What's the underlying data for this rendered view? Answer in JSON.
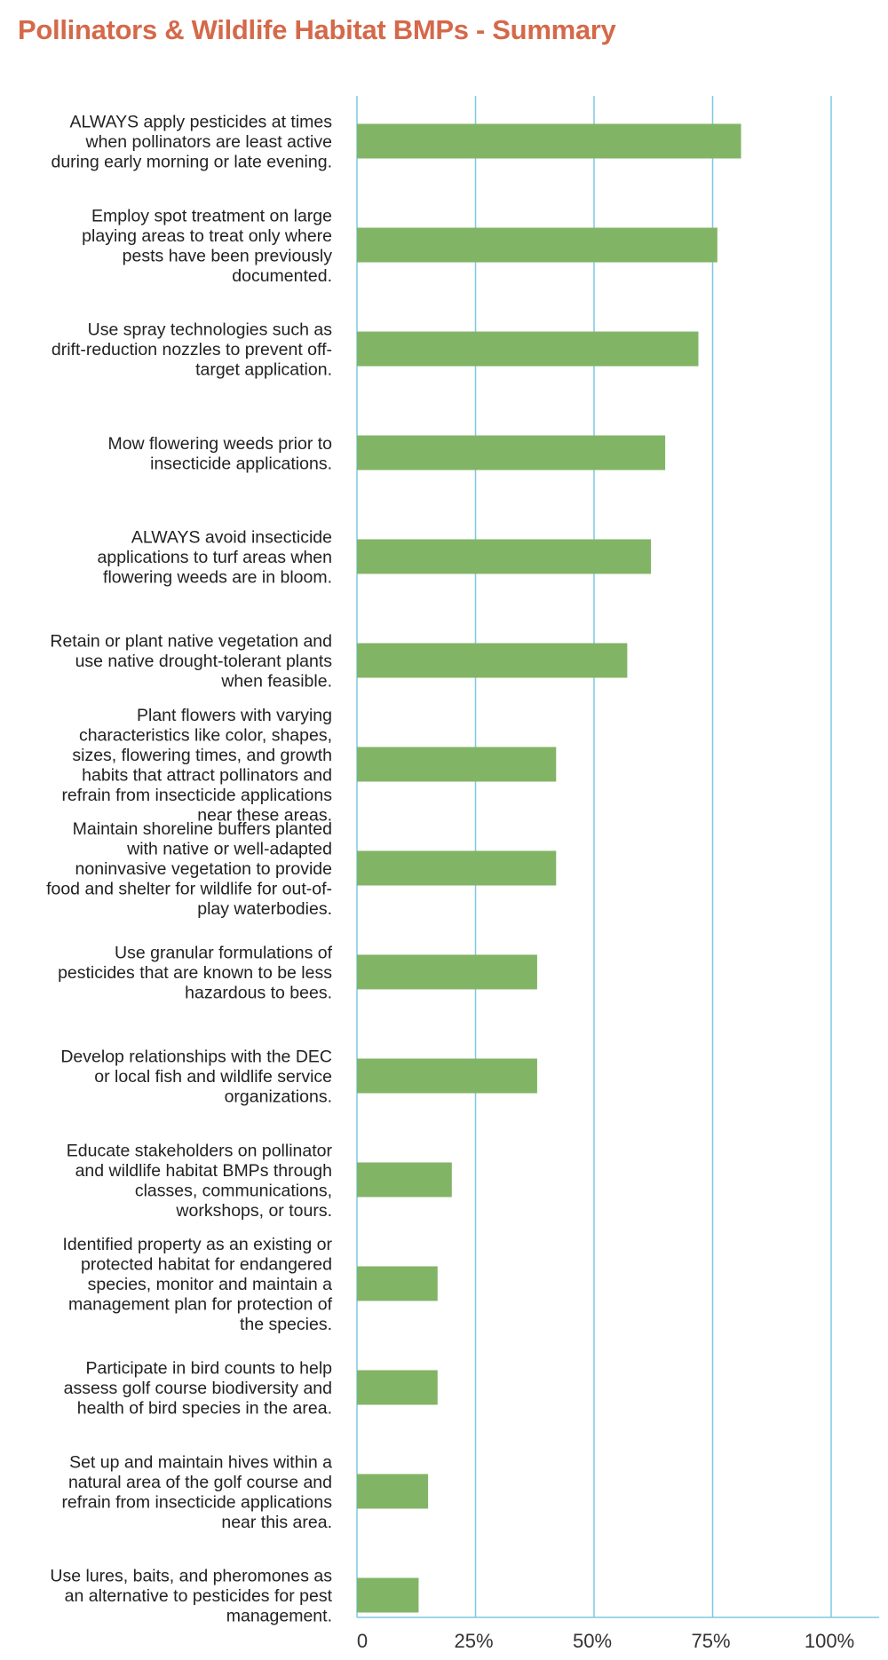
{
  "chart_data": {
    "type": "bar",
    "orientation": "horizontal",
    "title": "Pollinators & Wildlife Habitat BMPs - Summary",
    "xlabel": "",
    "ylabel": "",
    "categories": [
      [
        "ALWAYS apply pesticides at times",
        "when pollinators are least active",
        "during early morning or late evening."
      ],
      [
        "Employ spot treatment on large",
        "playing areas to treat only where",
        "pests have been previously",
        "documented."
      ],
      [
        "Use spray technologies such as",
        "drift-reduction nozzles to prevent off-",
        "target application."
      ],
      [
        "Mow flowering weeds prior to",
        "insecticide applications."
      ],
      [
        "ALWAYS avoid insecticide",
        "applications to turf areas when",
        "flowering weeds are in bloom."
      ],
      [
        "Retain or plant native vegetation and",
        "use native drought-tolerant plants",
        "when feasible."
      ],
      [
        "Plant flowers with varying",
        "characteristics like color, shapes,",
        "sizes, flowering times, and growth",
        "habits that attract pollinators and",
        "refrain from insecticide applications",
        "near these areas."
      ],
      [
        "Maintain shoreline buffers planted",
        "with native or well-adapted",
        "noninvasive vegetation to provide",
        "food and shelter for wildlife for out-of-",
        "play waterbodies."
      ],
      [
        "Use granular formulations of",
        "pesticides that are known to be less",
        "hazardous to bees."
      ],
      [
        "Develop relationships with the DEC",
        "or local fish and wildlife service",
        "organizations."
      ],
      [
        "Educate stakeholders on pollinator",
        "and wildlife habitat BMPs through",
        "classes, communications,",
        "workshops, or tours."
      ],
      [
        "Identified property as an existing or",
        "protected habitat for endangered",
        "species, monitor and maintain a",
        "management plan for protection of",
        "the species."
      ],
      [
        "Participate in bird counts to help",
        "assess golf course biodiversity and",
        "health of bird species in the area."
      ],
      [
        "Set up and maintain hives within a",
        "natural area of the golf course and",
        "refrain from insecticide applications",
        "near this area."
      ],
      [
        "Use lures, baits, and pheromones as",
        "an alternative to pesticides for pest",
        "management."
      ]
    ],
    "values": [
      81,
      76,
      72,
      65,
      62,
      57,
      42,
      42,
      38,
      38,
      20,
      17,
      17,
      15,
      13
    ],
    "xlim": [
      0,
      100
    ],
    "ticks": [
      0,
      25,
      50,
      75,
      100
    ],
    "tick_labels": [
      "0",
      "25%",
      "50%",
      "75%",
      "100%"
    ],
    "grid": true,
    "bar_color": "#82b466",
    "grid_color": "#7ec8e3"
  },
  "colors": {
    "title": "#d4694a",
    "text": "#222222"
  }
}
